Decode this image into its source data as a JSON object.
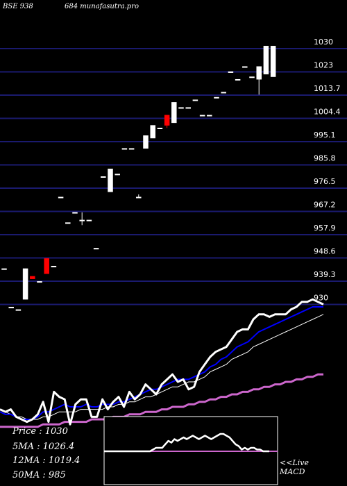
{
  "header": {
    "left": "BSE 938",
    "right": "684 munafasutra.pro"
  },
  "chart_data": {
    "type": "candlestick",
    "y_ticks": [
      1030,
      1023,
      1013.7,
      1004.4,
      995.1,
      985.8,
      976.5,
      967.2,
      957.9,
      948.6,
      939.3,
      930
    ],
    "ylim": [
      930,
      1030
    ],
    "grid": "horizontal",
    "candles": [
      {
        "o": 944,
        "h": 944,
        "l": 944,
        "c": 944
      },
      {
        "o": 929,
        "h": 929,
        "l": 929,
        "c": 929
      },
      {
        "o": 928,
        "h": 928,
        "l": 928,
        "c": 928
      },
      {
        "o": 932,
        "h": 944,
        "l": 932,
        "c": 944
      },
      {
        "o": 941,
        "h": 941,
        "l": 940,
        "c": 940
      },
      {
        "o": 939,
        "h": 939,
        "l": 939,
        "c": 939
      },
      {
        "o": 948,
        "h": 948,
        "l": 942,
        "c": 942
      },
      {
        "o": 945,
        "h": 945,
        "l": 945,
        "c": 945
      },
      {
        "o": 972,
        "h": 972,
        "l": 972,
        "c": 972
      },
      {
        "o": 962,
        "h": 962,
        "l": 962,
        "c": 962
      },
      {
        "o": 966,
        "h": 966,
        "l": 966,
        "c": 966
      },
      {
        "o": 963,
        "h": 966,
        "l": 961,
        "c": 963
      },
      {
        "o": 963,
        "h": 963,
        "l": 963,
        "c": 963
      },
      {
        "o": 952,
        "h": 952,
        "l": 952,
        "c": 952
      },
      {
        "o": 980,
        "h": 980,
        "l": 980,
        "c": 980
      },
      {
        "o": 974,
        "h": 983,
        "l": 974,
        "c": 983
      },
      {
        "o": 981,
        "h": 981,
        "l": 981,
        "c": 981
      },
      {
        "o": 991,
        "h": 991,
        "l": 991,
        "c": 991
      },
      {
        "o": 991,
        "h": 991,
        "l": 991,
        "c": 991
      },
      {
        "o": 972,
        "h": 973,
        "l": 972,
        "c": 972
      },
      {
        "o": 991,
        "h": 996,
        "l": 991,
        "c": 996
      },
      {
        "o": 995,
        "h": 1000,
        "l": 995,
        "c": 1000
      },
      {
        "o": 999,
        "h": 999,
        "l": 999,
        "c": 999
      },
      {
        "o": 1004,
        "h": 1004,
        "l": 999,
        "c": 1000
      },
      {
        "o": 1001,
        "h": 1009,
        "l": 1001,
        "c": 1009
      },
      {
        "o": 1007,
        "h": 1007,
        "l": 1007,
        "c": 1007
      },
      {
        "o": 1007,
        "h": 1007,
        "l": 1007,
        "c": 1007
      },
      {
        "o": 1010,
        "h": 1010,
        "l": 1010,
        "c": 1010
      },
      {
        "o": 1004,
        "h": 1004,
        "l": 1004,
        "c": 1004
      },
      {
        "o": 1004,
        "h": 1004,
        "l": 1004,
        "c": 1004
      },
      {
        "o": 1011,
        "h": 1011,
        "l": 1011,
        "c": 1011
      },
      {
        "o": 1013,
        "h": 1013,
        "l": 1013,
        "c": 1013
      },
      {
        "o": 1021,
        "h": 1021,
        "l": 1021,
        "c": 1021
      },
      {
        "o": 1018,
        "h": 1018,
        "l": 1018,
        "c": 1018
      },
      {
        "o": 1023,
        "h": 1023,
        "l": 1023,
        "c": 1023
      },
      {
        "o": 1019,
        "h": 1019,
        "l": 1019,
        "c": 1019
      },
      {
        "o": 1018,
        "h": 1023,
        "l": 1012,
        "c": 1023
      },
      {
        "o": 1020,
        "h": 1031,
        "l": 1020,
        "c": 1031
      },
      {
        "o": 1019,
        "h": 1031,
        "l": 1019,
        "c": 1031
      }
    ],
    "stats": [
      {
        "label": "Price",
        "value": "1030"
      },
      {
        "label": "5MA",
        "value": "1026.4"
      },
      {
        "label": "12MA",
        "value": "1019.4"
      },
      {
        "label": "50MA",
        "value": "985"
      }
    ],
    "indicator_series": {
      "price": [
        9,
        8,
        9,
        6,
        5,
        4,
        5,
        7,
        12,
        4,
        16,
        14,
        13,
        3,
        11,
        13,
        13,
        6,
        6,
        13,
        9,
        12,
        14,
        10,
        16,
        13,
        15,
        19,
        17,
        15,
        19,
        21,
        23,
        20,
        21,
        17,
        18,
        24,
        27,
        30,
        32,
        33,
        34,
        37,
        40,
        41,
        41,
        45,
        47,
        47,
        46,
        47,
        47,
        47,
        49,
        50,
        52,
        52,
        53,
        52,
        51
      ],
      "ma_fast": [
        8,
        7,
        7,
        6,
        5,
        5,
        5,
        6,
        8,
        8,
        9,
        10,
        11,
        10,
        10,
        10,
        11,
        10,
        10,
        11,
        11,
        11,
        12,
        12,
        13,
        14,
        15,
        16,
        17,
        17,
        18,
        19,
        20,
        21,
        21,
        21,
        22,
        23,
        24,
        26,
        27,
        29,
        30,
        32,
        34,
        35,
        36,
        38,
        40,
        41,
        42,
        43,
        44,
        45,
        46,
        47,
        48,
        49,
        50,
        50,
        50
      ],
      "ma_mid": [
        9,
        8,
        7,
        6,
        6,
        5,
        5,
        5,
        6,
        6,
        7,
        8,
        8,
        8,
        8,
        9,
        9,
        9,
        9,
        9,
        10,
        10,
        11,
        11,
        12,
        12,
        13,
        14,
        14,
        15,
        16,
        17,
        18,
        18,
        19,
        20,
        20,
        21,
        22,
        24,
        25,
        26,
        27,
        29,
        30,
        31,
        32,
        34,
        35,
        36,
        37,
        38,
        39,
        40,
        41,
        42,
        43,
        44,
        45,
        46,
        47
      ],
      "ma_slow": [
        2,
        2,
        2,
        2,
        2,
        2,
        2,
        2,
        3,
        3,
        3,
        3,
        4,
        4,
        4,
        4,
        4,
        5,
        5,
        5,
        5,
        6,
        6,
        6,
        7,
        7,
        7,
        8,
        8,
        8,
        9,
        9,
        10,
        10,
        10,
        11,
        11,
        12,
        12,
        13,
        13,
        14,
        14,
        15,
        15,
        16,
        16,
        17,
        17,
        18,
        18,
        19,
        19,
        20,
        20,
        21,
        21,
        22,
        22,
        23,
        23
      ]
    },
    "macd": {
      "label": "<<Live MACD",
      "values": [
        0,
        0,
        0,
        0,
        0,
        0,
        0,
        0,
        0,
        0,
        0,
        0,
        0,
        0,
        0,
        0,
        1,
        2,
        2,
        2,
        4,
        6,
        5,
        7,
        6,
        7,
        8,
        7,
        8,
        9,
        8,
        7,
        8,
        9,
        8,
        7,
        8,
        9,
        10,
        10,
        9,
        8,
        6,
        4,
        3,
        1,
        2,
        1,
        2,
        2,
        1,
        1,
        0,
        0,
        0
      ],
      "signal": 0
    }
  },
  "colors": {
    "background": "#000000",
    "grid": "#1a1a6e",
    "text": "#ffffff",
    "bull": "#ffffff",
    "bear": "#ff0000",
    "ma_fast": "#0000ff",
    "ma_slow": "#cc66cc",
    "macd_signal": "#cc66cc"
  }
}
